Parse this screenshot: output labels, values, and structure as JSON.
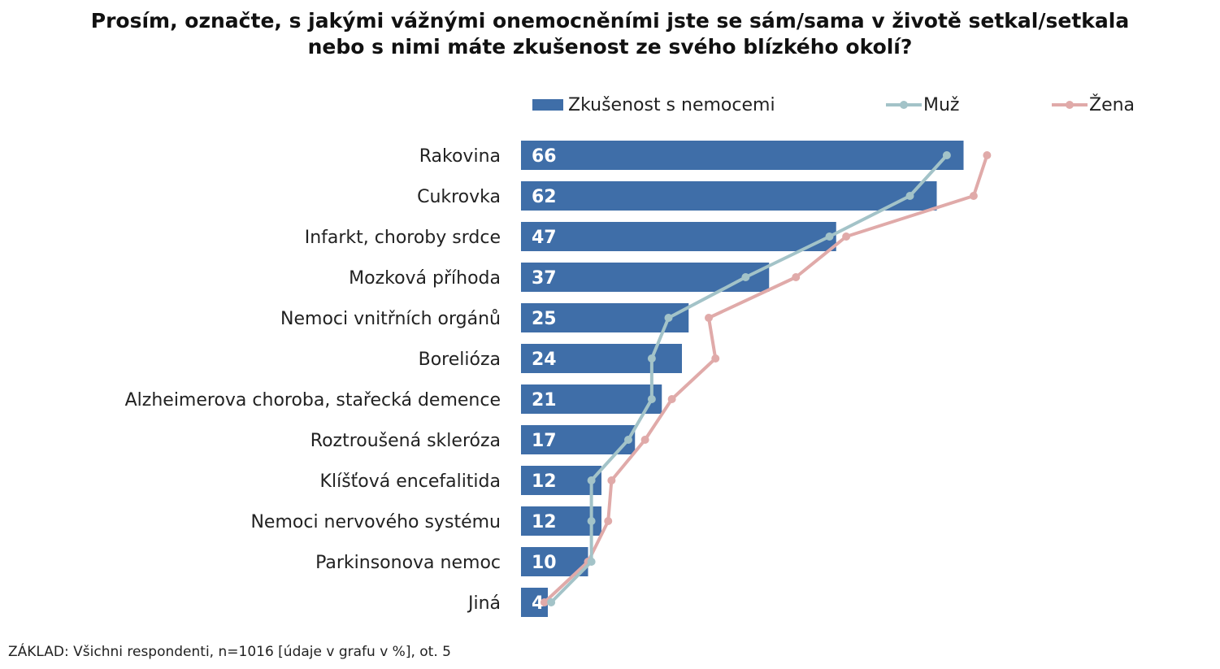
{
  "title_line1": "Prosím, označte, s jakými vážnými onemocněními jste se sám/sama v životě setkal/setkala",
  "title_line2": "nebo s nimi máte zkušenost ze svého blízkého okolí?",
  "footnote": "ZÁKLAD: Všichni respondenti, n=1016 [údaje v grafu v %], ot. 5",
  "colors": {
    "bar": "#3f6ea8",
    "muz": "#a3c3c8",
    "zena": "#e0aaa9"
  },
  "chart_data": {
    "type": "bar",
    "orientation": "horizontal",
    "title": "Prosím, označte, s jakými vážnými onemocněními jste se sám/sama v životě setkal/setkala nebo s nimi máte zkušenost ze svého blízkého okolí?",
    "legend_position": "top",
    "categories": [
      "Rakovina",
      "Cukrovka",
      "Infarkt, choroby srdce",
      "Mozková příhoda",
      "Nemoci vnitřních orgánů",
      "Borelióza",
      "Alzheimerova choroba, stařecká demence",
      "Roztroušená skleróza",
      "Klíšťová encefalitida",
      "Nemoci nervového systému",
      "Parkinsonova nemoc",
      "Jiná"
    ],
    "series": [
      {
        "name": "Zkušenost s nemocemi",
        "type": "bar",
        "values": [
          66,
          62,
          47,
          37,
          25,
          24,
          21,
          17,
          12,
          12,
          10,
          4
        ]
      },
      {
        "name": "Muž",
        "type": "line",
        "values": [
          63.5,
          58,
          46,
          33.5,
          22,
          19.5,
          19.5,
          16,
          10.5,
          10.5,
          10.5,
          4.5
        ]
      },
      {
        "name": "Žena",
        "type": "line",
        "values": [
          69.5,
          67.5,
          48.5,
          41,
          28,
          29,
          22.5,
          18.5,
          13.5,
          13,
          10,
          3.5
        ]
      }
    ],
    "xlim": [
      0,
      100
    ],
    "grid": false
  }
}
